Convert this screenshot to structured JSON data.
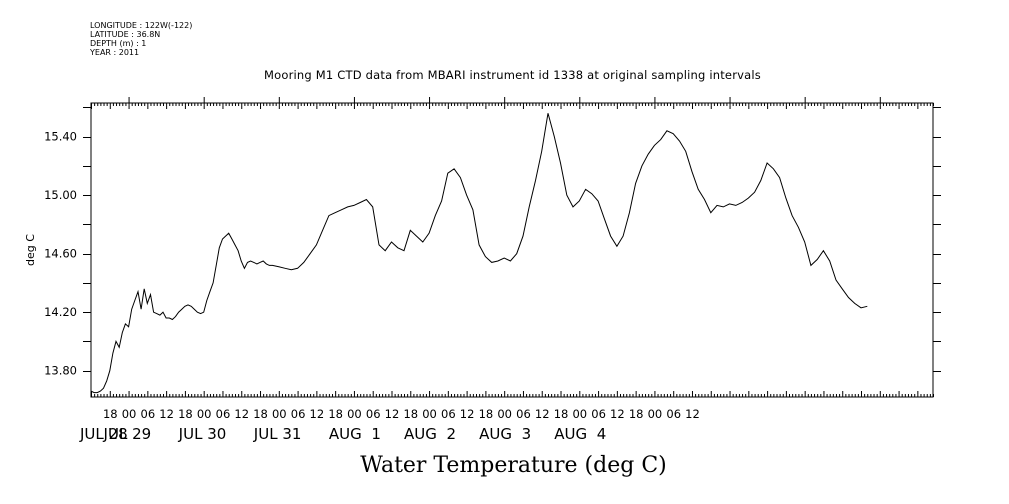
{
  "header": {
    "longitude": "LONGITUDE : 122W(-122)",
    "latitude": "LATITUDE : 36.8N",
    "depth": "DEPTH (m) : 1",
    "year": "YEAR : 2011"
  },
  "chart_data": {
    "type": "line",
    "title": "Mooring M1 CTD data from MBARI instrument id 1338 at original sampling intervals",
    "xlabel": "Water Temperature (deg C)",
    "ylabel": "deg C",
    "ylim": [
      13.62,
      15.63
    ],
    "xlim_hours_label": "JUL 28 12:00 to AUG 4 15:00",
    "y_ticks": [
      "13.80",
      "14.20",
      "14.60",
      "15.00",
      "15.40"
    ],
    "x_hour_ticks": [
      "18",
      "00",
      "06",
      "12",
      "18",
      "00",
      "06",
      "12",
      "18",
      "00",
      "06",
      "12",
      "18",
      "00",
      "06",
      "12",
      "18",
      "00",
      "06",
      "12",
      "18",
      "00",
      "06",
      "12",
      "18",
      "00",
      "06",
      "12",
      "18",
      "00",
      "06",
      "12"
    ],
    "x_day_labels": [
      "JUL 28",
      "JUL 29",
      "JUL 30",
      "JUL 31",
      "AUG  1",
      "AUG  2",
      "AUG  3",
      "AUG  4"
    ],
    "grid": false,
    "series": [
      {
        "color": "#000000",
        "x_hours_since_jul28_00": [
          12,
          13,
          14,
          15,
          16,
          17,
          18,
          19,
          20,
          21,
          22,
          23,
          24,
          25,
          26,
          27,
          28,
          29,
          30,
          31,
          32,
          33,
          34,
          35,
          36,
          37,
          38,
          39,
          40,
          41,
          42,
          43,
          44,
          45,
          46,
          47,
          48,
          49,
          50,
          51,
          52,
          53,
          54,
          55,
          56,
          57,
          58,
          59,
          60,
          61,
          62,
          63,
          64,
          65,
          66,
          67,
          68,
          69,
          70,
          72,
          74,
          76,
          78,
          80,
          82,
          84,
          86,
          88,
          90,
          92,
          94,
          96,
          98,
          100,
          102,
          104,
          106,
          108,
          110,
          112,
          114,
          116,
          118,
          120,
          122,
          124,
          126,
          128,
          130,
          132,
          134,
          136,
          138,
          140,
          142,
          144,
          146,
          148,
          150,
          152,
          154,
          156,
          158,
          160,
          162,
          164,
          166,
          168,
          170,
          172,
          174,
          176,
          178,
          180,
          182,
          184,
          186,
          188,
          190,
          192,
          194,
          196,
          198,
          200,
          202,
          204,
          206,
          208,
          210,
          212,
          214,
          216,
          218,
          220,
          222,
          224,
          226,
          228,
          230,
          232,
          234,
          236,
          238,
          240,
          242,
          244,
          246,
          248,
          250,
          252,
          254,
          256,
          258,
          260,
          262,
          264,
          266,
          268,
          270,
          272,
          274,
          276,
          278,
          279
        ],
        "values": [
          13.66,
          13.65,
          13.65,
          13.66,
          13.68,
          13.73,
          13.8,
          13.92,
          14.0,
          13.96,
          14.06,
          14.12,
          14.1,
          14.22,
          14.28,
          14.34,
          14.22,
          14.36,
          14.26,
          14.32,
          14.2,
          14.19,
          14.18,
          14.2,
          14.16,
          14.16,
          14.15,
          14.17,
          14.2,
          14.22,
          14.24,
          14.25,
          14.24,
          14.22,
          14.2,
          14.19,
          14.2,
          14.28,
          14.34,
          14.4,
          14.52,
          14.64,
          14.7,
          14.72,
          14.74,
          14.7,
          14.66,
          14.62,
          14.55,
          14.5,
          14.54,
          14.55,
          14.54,
          14.53,
          14.54,
          14.55,
          14.53,
          14.52,
          14.52,
          14.51,
          14.5,
          14.49,
          14.5,
          14.54,
          14.6,
          14.66,
          14.76,
          14.86,
          14.88,
          14.9,
          14.92,
          14.93,
          14.95,
          14.97,
          14.92,
          14.66,
          14.62,
          14.68,
          14.64,
          14.62,
          14.76,
          14.72,
          14.68,
          14.74,
          14.86,
          14.96,
          15.15,
          15.18,
          15.12,
          15.0,
          14.9,
          14.66,
          14.58,
          14.54,
          14.55,
          14.57,
          14.55,
          14.6,
          14.72,
          14.92,
          15.1,
          15.3,
          15.56,
          15.4,
          15.22,
          15.0,
          14.92,
          14.96,
          15.04,
          15.01,
          14.96,
          14.84,
          14.72,
          14.65,
          14.72,
          14.88,
          15.08,
          15.2,
          15.28,
          15.34,
          15.38,
          15.44,
          15.42,
          15.37,
          15.3,
          15.16,
          15.04,
          14.97,
          14.88,
          14.93,
          14.92,
          14.94,
          14.93,
          14.95,
          14.98,
          15.02,
          15.1,
          15.22,
          15.18,
          15.12,
          14.98,
          14.86,
          14.78,
          14.68,
          14.52,
          14.56,
          14.62,
          14.55,
          14.42,
          14.36,
          14.3,
          14.26,
          14.23,
          14.24
        ]
      }
    ]
  }
}
